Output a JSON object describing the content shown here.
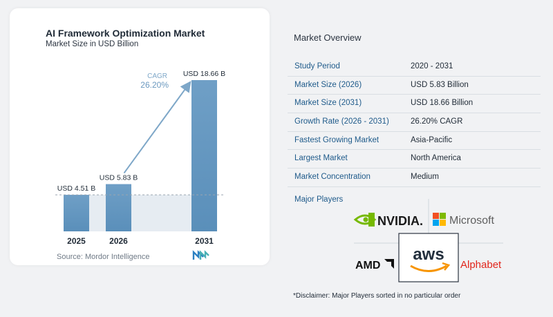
{
  "chart_data": {
    "type": "bar",
    "title": "AI Framework Optimization Market",
    "subtitle": "Market Size in USD Billion",
    "categories": [
      "2025",
      "2026",
      "2031"
    ],
    "values": [
      4.51,
      5.83,
      18.66
    ],
    "data_labels": [
      "USD 4.51 B",
      "USD 5.83 B",
      "USD 18.66 B"
    ],
    "cagr_label": "CAGR",
    "cagr_value": "26.20%",
    "ylim": [
      0,
      18.66
    ],
    "bar_color": "#5b93bd",
    "grid": false
  },
  "source": "Source:  Mordor Intelligence",
  "overview": {
    "title": "Market Overview",
    "rows": [
      {
        "key": "Study Period",
        "value": "2020 - 2031"
      },
      {
        "key": "Market Size (2026)",
        "value": "USD 5.83 Billion"
      },
      {
        "key": "Market Size (2031)",
        "value": "USD 18.66 Billion"
      },
      {
        "key": "Growth Rate (2026 - 2031)",
        "value": "26.20% CAGR"
      },
      {
        "key": "Fastest Growing Market",
        "value": "Asia-Pacific"
      },
      {
        "key": "Largest Market",
        "value": "North America"
      },
      {
        "key": "Market Concentration",
        "value": "Medium"
      }
    ]
  },
  "players": {
    "title": "Major Players",
    "nvidia": "NVIDIA.",
    "microsoft": "Microsoft",
    "aws": "aws",
    "amd": "AMD",
    "alphabet": "Alphabet"
  },
  "disclaimer": "*Disclaimer: Major Players sorted in no particular order",
  "colors": {
    "accent_blue": "#1e5a8a",
    "nvidia_green": "#76b900",
    "aws_orange": "#f79400",
    "alphabet_red": "#e1251b"
  }
}
